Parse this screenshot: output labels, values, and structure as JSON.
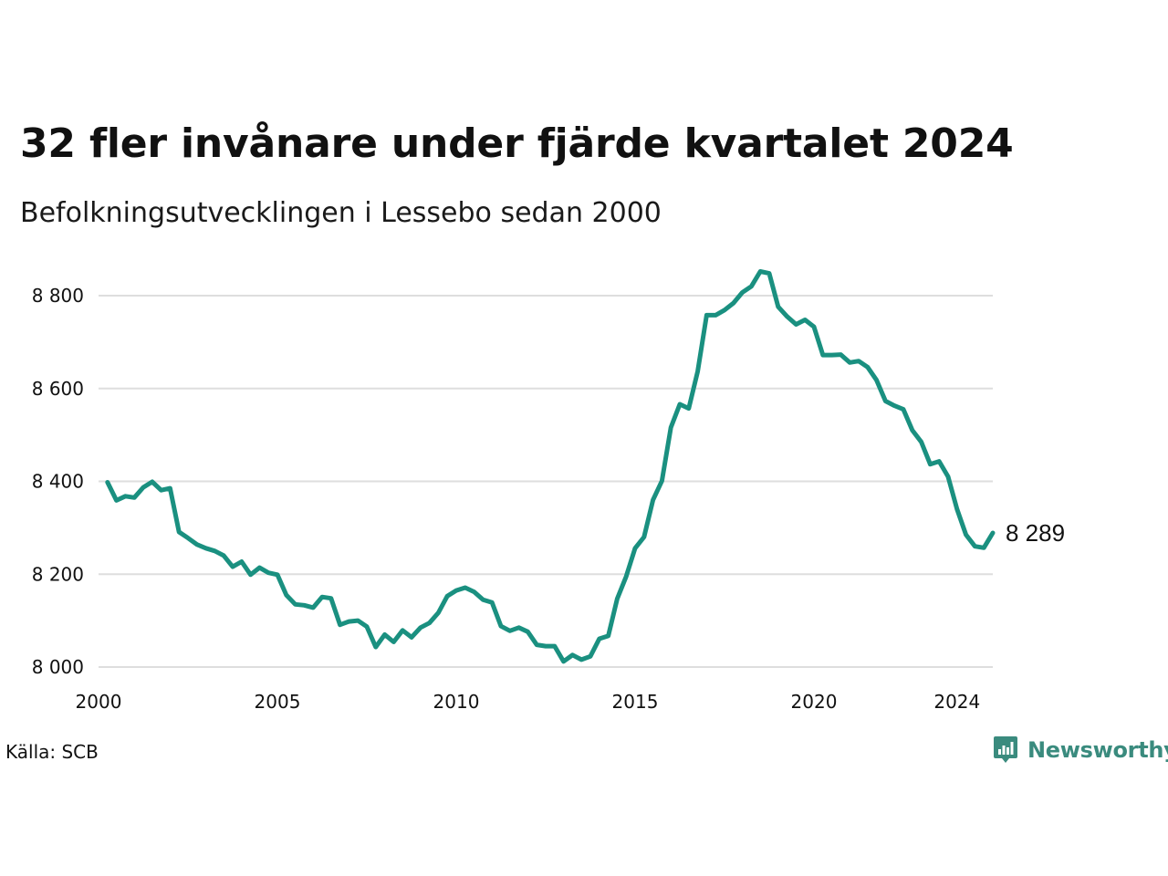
{
  "header": {
    "title": "32 fler invånare under fjärde kvartalet 2024",
    "subtitle": "Befolkningsutvecklingen i Lessebo sedan 2000"
  },
  "footer": {
    "source": "Källa: SCB",
    "brand": "Newsworthy",
    "brand_icon": "newsworthy-logo-icon",
    "brand_color": "#3a8b7e"
  },
  "chart_data": {
    "type": "line",
    "title": "32 fler invånare under fjärde kvartalet 2024",
    "subtitle": "Befolkningsutvecklingen i Lessebo sedan 2000",
    "xlabel": "",
    "ylabel": "",
    "x_start": 2000.25,
    "x_step": 0.25,
    "xlim": [
      2000,
      2025
    ],
    "ylim": [
      8000,
      8860
    ],
    "grid": true,
    "line_color": "#1a9080",
    "x_ticks": [
      2000,
      2005,
      2010,
      2015,
      2020,
      2024
    ],
    "x_tick_labels": [
      "2000",
      "2005",
      "2010",
      "2015",
      "2020",
      "2024"
    ],
    "y_ticks": [
      8000,
      8200,
      8400,
      8600,
      8800
    ],
    "y_tick_labels": [
      "8 000",
      "8 200",
      "8 400",
      "8 600",
      "8 800"
    ],
    "end_label": "8 289",
    "series": [
      {
        "values": [
          8398,
          8359,
          8368,
          8365,
          8387,
          8399,
          8381,
          8385,
          8291,
          8278,
          8264,
          8256,
          8250,
          8240,
          8216,
          8227,
          8199,
          8214,
          8203,
          8199,
          8155,
          8135,
          8133,
          8128,
          8151,
          8148,
          8091,
          8098,
          8100,
          8087,
          8043,
          8070,
          8054,
          8079,
          8064,
          8085,
          8095,
          8117,
          8153,
          8165,
          8171,
          8162,
          8145,
          8139,
          8088,
          8078,
          8085,
          8076,
          8048,
          8045,
          8045,
          8012,
          8026,
          8016,
          8023,
          8061,
          8067,
          8147,
          8195,
          8256,
          8280,
          8360,
          8401,
          8516,
          8566,
          8557,
          8637,
          8758,
          8758,
          8769,
          8784,
          8807,
          8820,
          8852,
          8848,
          8776,
          8755,
          8738,
          8748,
          8733,
          8672,
          8672,
          8673,
          8656,
          8659,
          8646,
          8618,
          8573,
          8563,
          8555,
          8510,
          8485,
          8437,
          8443,
          8410,
          8340,
          8285,
          8260,
          8257,
          8289
        ]
      }
    ]
  }
}
